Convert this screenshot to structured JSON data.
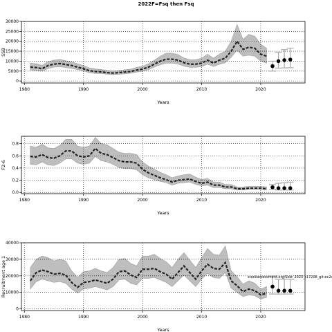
{
  "title": "2022F=Fsq then Fsq",
  "colors": {
    "band": "#bebebe",
    "band_edge": "#9a9a9a",
    "line": "#222222",
    "point": "#000000",
    "errbar": "#a8a8a8"
  },
  "annotation": "stockassessment.org/Sole_2023_r17208_git:ec2c",
  "chart_data": [
    {
      "type": "line",
      "id": "ssb",
      "ylabel": "SSB",
      "xlabel": "Years",
      "xlim": [
        1979.5,
        2027.5
      ],
      "ylim": [
        -1000,
        30000
      ],
      "xticks": [
        1980,
        1990,
        2000,
        2010,
        2020
      ],
      "yticks": [
        0,
        5000,
        10000,
        15000,
        20000,
        25000,
        30000
      ],
      "ytick_labels": [
        "0",
        "5000",
        "10000",
        "15000",
        "20000",
        "25000",
        "30000"
      ],
      "grid": true,
      "x": [
        1981,
        1982,
        1983,
        1984,
        1985,
        1986,
        1987,
        1988,
        1989,
        1990,
        1991,
        1992,
        1993,
        1994,
        1995,
        1996,
        1997,
        1998,
        1999,
        2000,
        2001,
        2002,
        2003,
        2004,
        2005,
        2006,
        2007,
        2008,
        2009,
        2010,
        2011,
        2012,
        2013,
        2014,
        2015,
        2016,
        2017,
        2018,
        2019,
        2020,
        2021
      ],
      "estimate": [
        7000,
        6800,
        6200,
        7800,
        8500,
        8800,
        8300,
        7800,
        7000,
        6200,
        5200,
        4800,
        4600,
        4200,
        4000,
        4200,
        4500,
        4800,
        5500,
        6000,
        7000,
        8500,
        10000,
        11000,
        11000,
        10500,
        9200,
        8500,
        8500,
        9000,
        10500,
        9000,
        10500,
        11500,
        15000,
        20000,
        16000,
        17000,
        16500,
        13500,
        12500
      ],
      "lower": [
        5500,
        5300,
        5000,
        6300,
        7000,
        7200,
        6800,
        6300,
        5700,
        5000,
        4200,
        3800,
        3700,
        3400,
        3200,
        3400,
        3600,
        3900,
        4500,
        4900,
        5700,
        7000,
        8200,
        9000,
        9000,
        8600,
        7500,
        6900,
        6900,
        7300,
        8500,
        7300,
        8400,
        9200,
        12000,
        15500,
        12500,
        13000,
        12500,
        10000,
        9000
      ],
      "upper": [
        9000,
        8700,
        7900,
        9700,
        10500,
        10900,
        10200,
        9600,
        8700,
        7800,
        6600,
        6100,
        5800,
        5300,
        5000,
        5300,
        5700,
        6000,
        6900,
        7400,
        8700,
        10500,
        12500,
        14000,
        14000,
        13300,
        11600,
        10700,
        10800,
        11500,
        13500,
        11500,
        13500,
        15000,
        20000,
        28500,
        21000,
        23500,
        22500,
        18500,
        16500
      ],
      "forecast": {
        "x": [
          2022,
          2023,
          2024,
          2025
        ],
        "values": [
          7500,
          10000,
          10500,
          10800
        ],
        "lower": [
          5000,
          6500,
          6600,
          6700
        ],
        "upper": [
          10000,
          14500,
          15800,
          16500
        ]
      }
    },
    {
      "type": "line",
      "id": "fbar",
      "ylabel": "F2-6",
      "xlabel": "Years",
      "xlim": [
        1979.5,
        2027.5
      ],
      "ylim": [
        -0.02,
        0.92
      ],
      "xticks": [
        1980,
        1990,
        2000,
        2010,
        2020
      ],
      "yticks": [
        0.0,
        0.2,
        0.4,
        0.6,
        0.8
      ],
      "ytick_labels": [
        "0.0",
        "0.2",
        "0.4",
        "0.6",
        "0.8"
      ],
      "grid": true,
      "x": [
        1981,
        1982,
        1983,
        1984,
        1985,
        1986,
        1987,
        1988,
        1989,
        1990,
        1991,
        1992,
        1993,
        1994,
        1995,
        1996,
        1997,
        1998,
        1999,
        2000,
        2001,
        2002,
        2003,
        2004,
        2005,
        2006,
        2007,
        2008,
        2009,
        2010,
        2011,
        2012,
        2013,
        2014,
        2015,
        2016,
        2017,
        2018,
        2019,
        2020,
        2021
      ],
      "estimate": [
        0.59,
        0.58,
        0.62,
        0.57,
        0.56,
        0.6,
        0.68,
        0.68,
        0.6,
        0.58,
        0.6,
        0.72,
        0.64,
        0.62,
        0.57,
        0.52,
        0.5,
        0.5,
        0.48,
        0.38,
        0.32,
        0.28,
        0.24,
        0.21,
        0.17,
        0.2,
        0.21,
        0.22,
        0.18,
        0.15,
        0.17,
        0.12,
        0.12,
        0.09,
        0.09,
        0.06,
        0.06,
        0.07,
        0.07,
        0.07,
        0.06
      ],
      "lower": [
        0.46,
        0.45,
        0.5,
        0.45,
        0.44,
        0.48,
        0.55,
        0.55,
        0.48,
        0.46,
        0.48,
        0.59,
        0.52,
        0.5,
        0.46,
        0.41,
        0.39,
        0.39,
        0.37,
        0.29,
        0.24,
        0.21,
        0.18,
        0.16,
        0.12,
        0.15,
        0.16,
        0.17,
        0.13,
        0.11,
        0.12,
        0.08,
        0.08,
        0.06,
        0.06,
        0.04,
        0.04,
        0.05,
        0.05,
        0.05,
        0.04
      ],
      "upper": [
        0.76,
        0.74,
        0.79,
        0.73,
        0.72,
        0.77,
        0.87,
        0.87,
        0.76,
        0.74,
        0.76,
        0.9,
        0.8,
        0.78,
        0.72,
        0.66,
        0.64,
        0.64,
        0.62,
        0.5,
        0.43,
        0.38,
        0.33,
        0.29,
        0.24,
        0.27,
        0.29,
        0.3,
        0.25,
        0.21,
        0.23,
        0.17,
        0.17,
        0.13,
        0.13,
        0.09,
        0.09,
        0.1,
        0.1,
        0.1,
        0.09
      ],
      "forecast": {
        "x": [
          2022,
          2023,
          2024,
          2025
        ],
        "values": [
          0.085,
          0.07,
          0.07,
          0.07
        ],
        "lower": [
          0.05,
          0.04,
          0.04,
          0.04
        ],
        "upper": [
          0.13,
          0.15,
          0.16,
          0.17
        ]
      }
    },
    {
      "type": "line",
      "id": "recruitment",
      "ylabel": "Recruitment age 1",
      "xlabel": "Years",
      "xlim": [
        1979.5,
        2027.5
      ],
      "ylim": [
        -1000,
        40000
      ],
      "xticks": [
        1980,
        1990,
        2000,
        2010,
        2020
      ],
      "yticks": [
        0,
        10000,
        20000,
        30000,
        40000
      ],
      "ytick_labels": [
        "0",
        "10000",
        "20000",
        "30000",
        "40000"
      ],
      "grid": true,
      "x": [
        1981,
        1982,
        1983,
        1984,
        1985,
        1986,
        1987,
        1988,
        1989,
        1990,
        1991,
        1992,
        1993,
        1994,
        1995,
        1996,
        1997,
        1998,
        1999,
        2000,
        2001,
        2002,
        2003,
        2004,
        2005,
        2006,
        2007,
        2008,
        2009,
        2010,
        2011,
        2012,
        2013,
        2014,
        2015,
        2016,
        2017,
        2018,
        2019,
        2020,
        2021
      ],
      "estimate": [
        17000,
        22000,
        23500,
        22500,
        21000,
        21500,
        20500,
        16000,
        13000,
        16000,
        16500,
        17500,
        16500,
        15500,
        18000,
        22500,
        23000,
        20500,
        19000,
        24000,
        24000,
        24500,
        22500,
        21000,
        18000,
        22000,
        26000,
        22000,
        18000,
        23000,
        27000,
        24500,
        24000,
        28000,
        17000,
        14000,
        10500,
        12000,
        11000,
        8500,
        9500
      ],
      "lower": [
        12000,
        16500,
        18000,
        17000,
        16000,
        16500,
        15500,
        12000,
        9500,
        12000,
        12500,
        13500,
        12500,
        11500,
        13500,
        17500,
        18000,
        15500,
        14500,
        18500,
        18500,
        19000,
        17500,
        16000,
        13500,
        17000,
        20500,
        17000,
        13500,
        18000,
        21500,
        19000,
        18500,
        22000,
        12500,
        10000,
        7500,
        8500,
        8000,
        6000,
        7000
      ],
      "upper": [
        25000,
        30000,
        32000,
        31000,
        29000,
        30000,
        29000,
        23000,
        19000,
        22500,
        23000,
        24500,
        23000,
        22000,
        25000,
        30000,
        30500,
        27500,
        26000,
        32000,
        32000,
        33000,
        30500,
        28500,
        25000,
        30000,
        34000,
        29500,
        25000,
        31000,
        36500,
        33000,
        32500,
        38000,
        23000,
        19500,
        15000,
        17000,
        15500,
        12000,
        13500
      ],
      "forecast": {
        "x": [
          2022,
          2023,
          2024,
          2025
        ],
        "values": [
          13500,
          11000,
          11000,
          11000
        ],
        "lower": [
          9000,
          9000,
          9000,
          9000
        ],
        "upper": [
          20000,
          18000,
          18000,
          18000
        ]
      }
    }
  ]
}
